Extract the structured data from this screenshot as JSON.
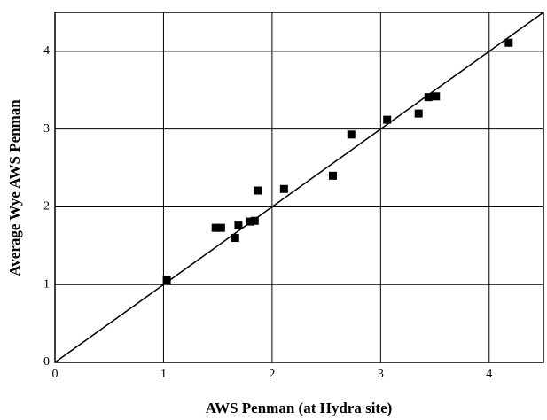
{
  "chart_data": {
    "type": "scatter",
    "xlabel": "AWS Penman (at Hydra site)",
    "ylabel": "Average Wye AWS Penman",
    "series": [
      {
        "name": null,
        "color": "#000000",
        "x": [
          1.03,
          1.48,
          1.53,
          1.66,
          1.69,
          1.8,
          1.84,
          1.87,
          2.11,
          2.56,
          2.73,
          3.06,
          3.35,
          3.44,
          3.51,
          4.18
        ],
        "values": [
          1.06,
          1.73,
          1.73,
          1.6,
          1.77,
          1.81,
          1.82,
          2.21,
          2.23,
          2.4,
          2.93,
          3.12,
          3.2,
          3.41,
          3.42,
          4.11
        ]
      }
    ],
    "reference_line": {
      "x": [
        0,
        4.5
      ],
      "y": [
        0,
        4.5
      ]
    },
    "xlim": [
      0,
      4.5
    ],
    "xticks": [
      0,
      1,
      2,
      3,
      4
    ],
    "ylim": [
      0,
      4.5
    ],
    "yticks": [
      0,
      1,
      2,
      3,
      4
    ],
    "grid": true
  }
}
